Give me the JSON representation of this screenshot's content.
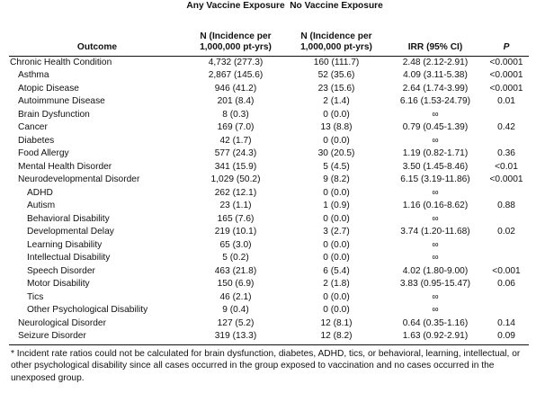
{
  "header": {
    "group_vax": "Any Vaccine Exposure",
    "group_novax": "No Vaccine Exposure",
    "col_outcome": "Outcome",
    "col_vax": "N (Incidence per 1,000,000 pt-yrs)",
    "col_novax": "N (Incidence per 1,000,000 pt-yrs)",
    "col_irr": "IRR (95% CI)",
    "col_p": "P"
  },
  "rows": [
    {
      "level": 0,
      "outcome": "Chronic Health Condition",
      "vax": "4,732 (277.3)",
      "novax": "160 (111.7)",
      "irr": "2.48 (2.12-2.91)",
      "p": "<0.0001"
    },
    {
      "level": 1,
      "outcome": "Asthma",
      "vax": "2,867 (145.6)",
      "novax": "52 (35.6)",
      "irr": "4.09 (3.11-5.38)",
      "p": "<0.0001"
    },
    {
      "level": 1,
      "outcome": "Atopic Disease",
      "vax": "946 (41.2)",
      "novax": "23 (15.6)",
      "irr": "2.64 (1.74-3.99)",
      "p": "<0.0001"
    },
    {
      "level": 1,
      "outcome": "Autoimmune Disease",
      "vax": "201 (8.4)",
      "novax": "2 (1.4)",
      "irr": "6.16 (1.53-24.79)",
      "p": "0.01"
    },
    {
      "level": 1,
      "outcome": "Brain Dysfunction",
      "vax": "8 (0.3)",
      "novax": "0 (0.0)",
      "irr": "∞",
      "p": ""
    },
    {
      "level": 1,
      "outcome": "Cancer",
      "vax": "169 (7.0)",
      "novax": "13 (8.8)",
      "irr": "0.79 (0.45-1.39)",
      "p": "0.42"
    },
    {
      "level": 1,
      "outcome": "Diabetes",
      "vax": "42 (1.7)",
      "novax": "0 (0.0)",
      "irr": "∞",
      "p": ""
    },
    {
      "level": 1,
      "outcome": "Food Allergy",
      "vax": "577 (24.3)",
      "novax": "30 (20.5)",
      "irr": "1.19 (0.82-1.71)",
      "p": "0.36"
    },
    {
      "level": 1,
      "outcome": "Mental Health Disorder",
      "vax": "341 (15.9)",
      "novax": "5 (4.5)",
      "irr": "3.50 (1.45-8.46)",
      "p": "<0.01"
    },
    {
      "level": 1,
      "outcome": "Neurodevelopmental Disorder",
      "vax": "1,029 (50.2)",
      "novax": "9 (8.2)",
      "irr": "6.15 (3.19-11.86)",
      "p": "<0.0001"
    },
    {
      "level": 2,
      "outcome": "ADHD",
      "vax": "262 (12.1)",
      "novax": "0 (0.0)",
      "irr": "∞",
      "p": ""
    },
    {
      "level": 2,
      "outcome": "Autism",
      "vax": "23 (1.1)",
      "novax": "1 (0.9)",
      "irr": "1.16 (0.16-8.62)",
      "p": "0.88"
    },
    {
      "level": 2,
      "outcome": "Behavioral Disability",
      "vax": "165 (7.6)",
      "novax": "0 (0.0)",
      "irr": "∞",
      "p": ""
    },
    {
      "level": 2,
      "outcome": "Developmental Delay",
      "vax": "219 (10.1)",
      "novax": "3 (2.7)",
      "irr": "3.74 (1.20-11.68)",
      "p": "0.02"
    },
    {
      "level": 2,
      "outcome": "Learning Disability",
      "vax": "65 (3.0)",
      "novax": "0 (0.0)",
      "irr": "∞",
      "p": ""
    },
    {
      "level": 2,
      "outcome": "Intellectual Disability",
      "vax": "5 (0.2)",
      "novax": "0 (0.0)",
      "irr": "∞",
      "p": ""
    },
    {
      "level": 2,
      "outcome": "Speech Disorder",
      "vax": "463 (21.8)",
      "novax": "6 (5.4)",
      "irr": "4.02 (1.80-9.00)",
      "p": "<0.001"
    },
    {
      "level": 2,
      "outcome": "Motor Disability",
      "vax": "150 (6.9)",
      "novax": "2 (1.8)",
      "irr": "3.83 (0.95-15.47)",
      "p": "0.06"
    },
    {
      "level": 2,
      "outcome": "Tics",
      "vax": "46 (2.1)",
      "novax": "0 (0.0)",
      "irr": "∞",
      "p": ""
    },
    {
      "level": 2,
      "outcome": "Other Psychological Disability",
      "vax": "9 (0.4)",
      "novax": "0 (0.0)",
      "irr": "∞",
      "p": ""
    },
    {
      "level": 1,
      "outcome": "Neurological Disorder",
      "vax": "127 (5.2)",
      "novax": "12 (8.1)",
      "irr": "0.64 (0.35-1.16)",
      "p": "0.14"
    },
    {
      "level": 1,
      "outcome": "Seizure Disorder",
      "vax": "319 (13.3)",
      "novax": "12 (8.2)",
      "irr": "1.63 (0.92-2.91)",
      "p": "0.09"
    }
  ],
  "footnote": "* Incident rate ratios could not be calculated for brain dysfunction, diabetes, ADHD, tics, or behavioral, learning, intellectual, or other psychological disability since all cases occurred in the group exposed to vaccination and no cases occurred in the unexposed group."
}
